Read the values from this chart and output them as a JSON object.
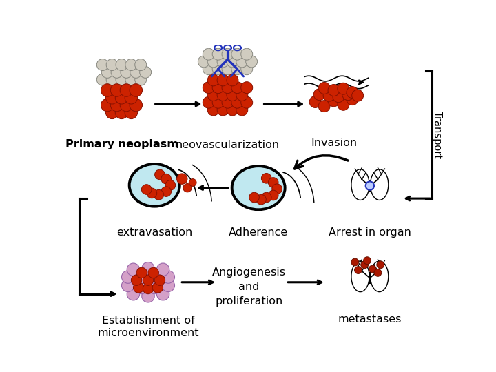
{
  "bg_color": "#ffffff",
  "labels": {
    "primary_neoplasm": "Primary neoplasm",
    "neovascularization": "neovascularization",
    "invasion": "Invasion",
    "transport": "Transport",
    "arrest_in_organ": "Arrest in organ",
    "adherence": "Adherence",
    "extravasation": "extravasation",
    "angiogenesis": "Angiogenesis\nand\nproliferation",
    "establishment": "Establishment of\nmicroenvironment",
    "metastases": "metastases"
  },
  "red": "#cc2200",
  "red_dark": "#881100",
  "gray": "#d0ccc0",
  "gray_dark": "#888880",
  "blue_vessel": "#2233bb",
  "light_blue": "#c0e8f0",
  "purple": "#d4a0c8",
  "purple_dark": "#9966aa",
  "arrow_color": "#000000"
}
